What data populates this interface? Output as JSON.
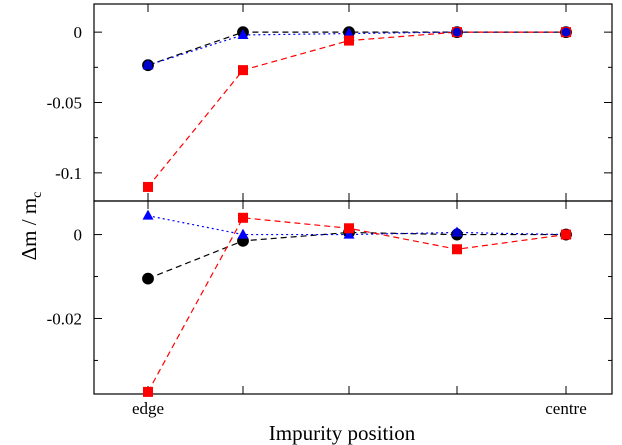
{
  "chart_data": [
    {
      "panel": "top",
      "type": "line",
      "xlabel": "",
      "ylabel": "",
      "x_positions": [
        1,
        2,
        3,
        4,
        5
      ],
      "ylim": [
        -0.12,
        0.02
      ],
      "yticks": [
        0,
        -0.05,
        -0.1
      ],
      "ytick_labels": [
        "0",
        "-0.05",
        "-0.1"
      ],
      "series": [
        {
          "marker": "circle",
          "color": "#000000",
          "dash": "dashed",
          "x": [
            1,
            2,
            3,
            4,
            5
          ],
          "values": [
            -0.0235,
            0.0,
            0.0,
            0.0,
            0.0
          ]
        },
        {
          "marker": "triangle",
          "color": "#0000ff",
          "dash": "dotted",
          "x": [
            1,
            2,
            3,
            4,
            5
          ],
          "values": [
            -0.0235,
            -0.002,
            -0.001,
            0.0,
            0.0
          ]
        },
        {
          "marker": "square",
          "color": "#ff0000",
          "dash": "dashed",
          "x": [
            1,
            2,
            3,
            4,
            5
          ],
          "values": [
            -0.11,
            -0.027,
            -0.006,
            0.0,
            0.0
          ]
        },
        {
          "marker": "circle",
          "color": "#0000cc",
          "dash": "none",
          "x": [
            1,
            4,
            5
          ],
          "values": [
            -0.0235,
            0.0,
            0.0
          ]
        }
      ]
    },
    {
      "panel": "bottom",
      "type": "line",
      "xlabel": "Impurity position",
      "ylabel": "",
      "x_positions": [
        1,
        2,
        3,
        4,
        5
      ],
      "xtick_labels": [
        "edge",
        "",
        "",
        "",
        "centre"
      ],
      "ylim": [
        -0.038,
        0.008
      ],
      "yticks": [
        0,
        -0.02
      ],
      "ytick_labels": [
        "0",
        "-0.02"
      ],
      "series": [
        {
          "marker": "circle",
          "color": "#000000",
          "dash": "dashed",
          "x": [
            1,
            2,
            3,
            4,
            5
          ],
          "values": [
            -0.0105,
            -0.0015,
            0.0005,
            0.0,
            0.0
          ]
        },
        {
          "marker": "triangle",
          "color": "#0000ff",
          "dash": "dotted",
          "x": [
            1,
            2,
            3,
            4,
            5
          ],
          "values": [
            0.0045,
            0.0,
            0.0,
            0.0005,
            0.0
          ]
        },
        {
          "marker": "square",
          "color": "#ff0000",
          "dash": "dashed",
          "x": [
            1,
            2,
            3,
            4,
            5
          ],
          "values": [
            -0.0375,
            0.004,
            0.0015,
            -0.0035,
            0.0
          ]
        },
        {
          "marker": "circle",
          "color": "#0000cc",
          "dash": "none",
          "x": [
            4
          ],
          "values": [
            0.0005
          ]
        }
      ]
    }
  ],
  "ylabel_main": "Δm / m",
  "ylabel_sub": "c"
}
